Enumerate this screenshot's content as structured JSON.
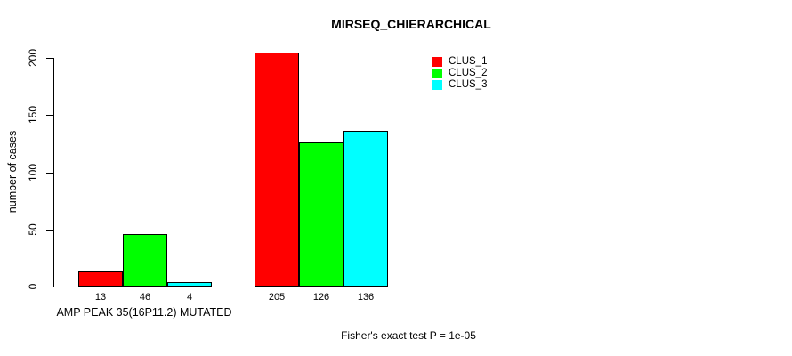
{
  "page": {
    "background": "#ffffff",
    "text_color": "#000000"
  },
  "chart_data": {
    "type": "bar",
    "title": "MIRSEQ_CHIERARCHICAL",
    "ylabel": "number of cases",
    "xlabel": "AMP PEAK 35(16P11.2) MUTATED",
    "annotation": "Fisher's exact test P = 1e-05",
    "yticks": [
      0,
      50,
      100,
      150,
      200
    ],
    "ylim": [
      0,
      205
    ],
    "grid": false,
    "legend_position": "top-right",
    "bar_border_color": "#000000",
    "series": [
      {
        "name": "CLUS_1",
        "color": "#ff0000",
        "values": [
          13,
          205
        ]
      },
      {
        "name": "CLUS_2",
        "color": "#00ff00",
        "values": [
          46,
          126
        ]
      },
      {
        "name": "CLUS_3",
        "color": "#00ffff",
        "values": [
          4,
          136
        ]
      }
    ],
    "groups": [
      {
        "label": "AMP PEAK 35(16P11.2) MUTATED",
        "bar_value_labels": [
          "13",
          "46",
          "4"
        ]
      },
      {
        "label": "",
        "bar_value_labels": [
          "205",
          "126",
          "136"
        ]
      }
    ]
  },
  "legend": {
    "items": [
      {
        "label": "CLUS_1",
        "color": "#ff0000"
      },
      {
        "label": "CLUS_2",
        "color": "#00ff00"
      },
      {
        "label": "CLUS_3",
        "color": "#00ffff"
      }
    ]
  }
}
